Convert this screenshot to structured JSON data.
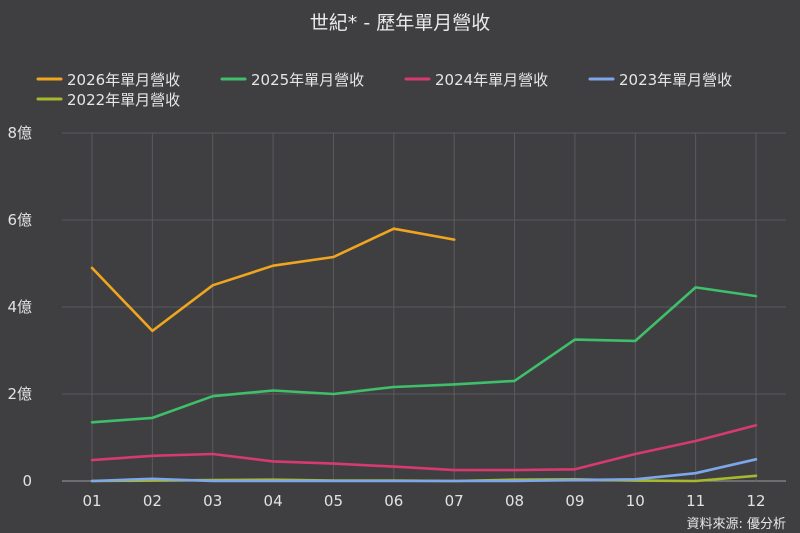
{
  "chart_data": {
    "type": "line",
    "title": "世紀* - 歷年單月營收",
    "source_note": "資料來源: 優分析",
    "categories": [
      "01",
      "02",
      "03",
      "04",
      "05",
      "06",
      "07",
      "08",
      "09",
      "10",
      "11",
      "12"
    ],
    "ylim": [
      0,
      8
    ],
    "yticks": [
      {
        "value": 0,
        "label": "0"
      },
      {
        "value": 2,
        "label": "2億"
      },
      {
        "value": 4,
        "label": "4億"
      },
      {
        "value": 6,
        "label": "6億"
      },
      {
        "value": 8,
        "label": "8億"
      }
    ],
    "grid": true,
    "legend_position": "top",
    "series": [
      {
        "name": "2026年單月營收",
        "color": "#f0a51f",
        "values": [
          4.9,
          3.45,
          4.5,
          4.95,
          5.15,
          5.8,
          5.55,
          null,
          null,
          null,
          null,
          null
        ]
      },
      {
        "name": "2025年單月營收",
        "color": "#3fbf6a",
        "values": [
          1.35,
          1.45,
          1.95,
          2.08,
          2.0,
          2.16,
          2.22,
          2.3,
          3.25,
          3.22,
          4.45,
          4.25
        ]
      },
      {
        "name": "2024年單月營收",
        "color": "#d63a6e",
        "values": [
          0.48,
          0.58,
          0.62,
          0.45,
          0.4,
          0.33,
          0.25,
          0.25,
          0.27,
          0.62,
          0.92,
          1.28
        ]
      },
      {
        "name": "2023年單月營收",
        "color": "#7ea6ea",
        "values": [
          0.0,
          0.05,
          0.0,
          0.0,
          0.0,
          0.0,
          0.0,
          0.0,
          0.02,
          0.04,
          0.18,
          0.5
        ]
      },
      {
        "name": "2022年單月營收",
        "color": "#a7b82c",
        "values": [
          0.0,
          0.01,
          0.02,
          0.03,
          0.01,
          0.01,
          0.0,
          0.03,
          0.04,
          0.01,
          0.0,
          0.12
        ]
      }
    ]
  }
}
